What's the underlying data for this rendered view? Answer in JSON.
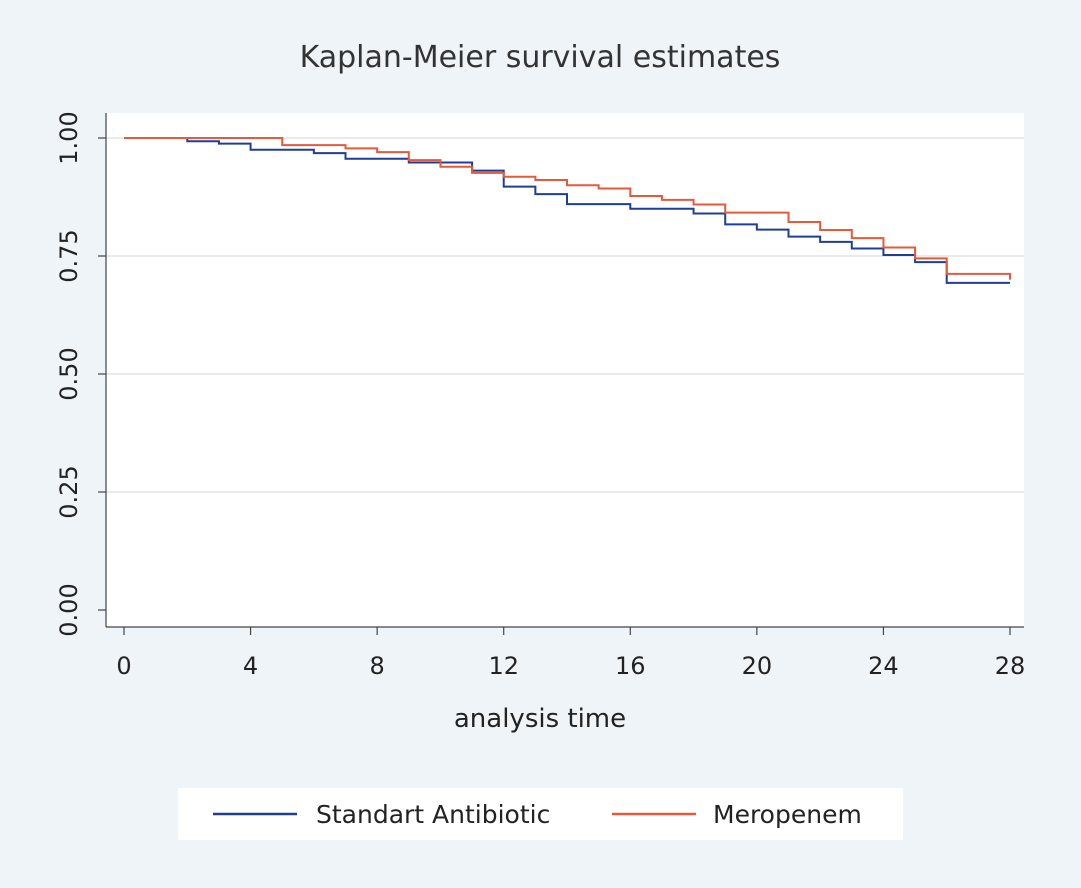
{
  "colors": {
    "background": "#eff4f8",
    "plot_background": "#ffffff",
    "gridline": "#d5d5d5",
    "axis": "#444444",
    "text": "#222222",
    "title_text": "#333333"
  },
  "chart_data": {
    "type": "line",
    "subtype": "kaplan-meier step",
    "title": "Kaplan-Meier survival estimates",
    "xlabel": "analysis time",
    "ylabel": "",
    "xlim": [
      0,
      28
    ],
    "ylim": [
      0,
      1
    ],
    "x_ticks": [
      "0",
      "4",
      "8",
      "12",
      "16",
      "20",
      "24",
      "28"
    ],
    "y_ticks": [
      "0.00",
      "0.25",
      "0.50",
      "0.75",
      "1.00"
    ],
    "grid": "horizontal",
    "legend_position": "bottom",
    "series": [
      {
        "name": "Standart Antibiotic",
        "color": "#1f3f96",
        "x": [
          0,
          2,
          3,
          4,
          6,
          7,
          9,
          11,
          12,
          13,
          14,
          16,
          18,
          19,
          20,
          21,
          22,
          23,
          24,
          25,
          26,
          28
        ],
        "y": [
          1.0,
          0.993,
          0.988,
          0.975,
          0.968,
          0.956,
          0.948,
          0.931,
          0.897,
          0.881,
          0.86,
          0.85,
          0.84,
          0.817,
          0.806,
          0.791,
          0.78,
          0.766,
          0.752,
          0.737,
          0.693,
          0.693
        ]
      },
      {
        "name": "Meropenem",
        "color": "#e45a3a",
        "x": [
          0,
          5,
          7,
          8,
          9,
          10,
          11,
          12,
          13,
          14,
          15,
          16,
          17,
          18,
          19,
          21,
          22,
          23,
          24,
          25,
          26,
          28
        ],
        "y": [
          1.0,
          0.985,
          0.978,
          0.97,
          0.953,
          0.939,
          0.926,
          0.918,
          0.911,
          0.9,
          0.893,
          0.877,
          0.869,
          0.859,
          0.842,
          0.822,
          0.805,
          0.788,
          0.768,
          0.745,
          0.712,
          0.7
        ]
      }
    ]
  }
}
